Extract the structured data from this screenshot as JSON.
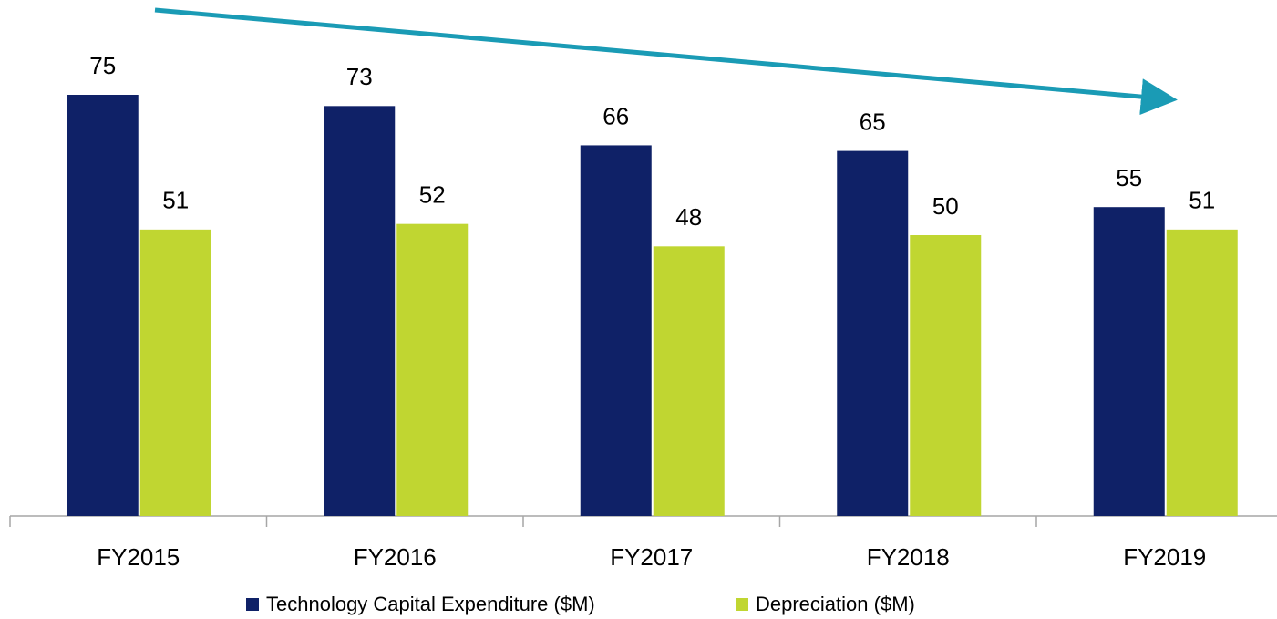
{
  "chart_data": {
    "type": "bar",
    "categories": [
      "FY2015",
      "FY2016",
      "FY2017",
      "FY2018",
      "FY2019"
    ],
    "series": [
      {
        "name": "Technology Capital Expenditure ($M)",
        "color": "#0f2167",
        "values": [
          75,
          73,
          66,
          65,
          55
        ]
      },
      {
        "name": "Depreciation ($M)",
        "color": "#c0d631",
        "values": [
          51,
          52,
          48,
          50,
          51
        ]
      }
    ]
  }
}
